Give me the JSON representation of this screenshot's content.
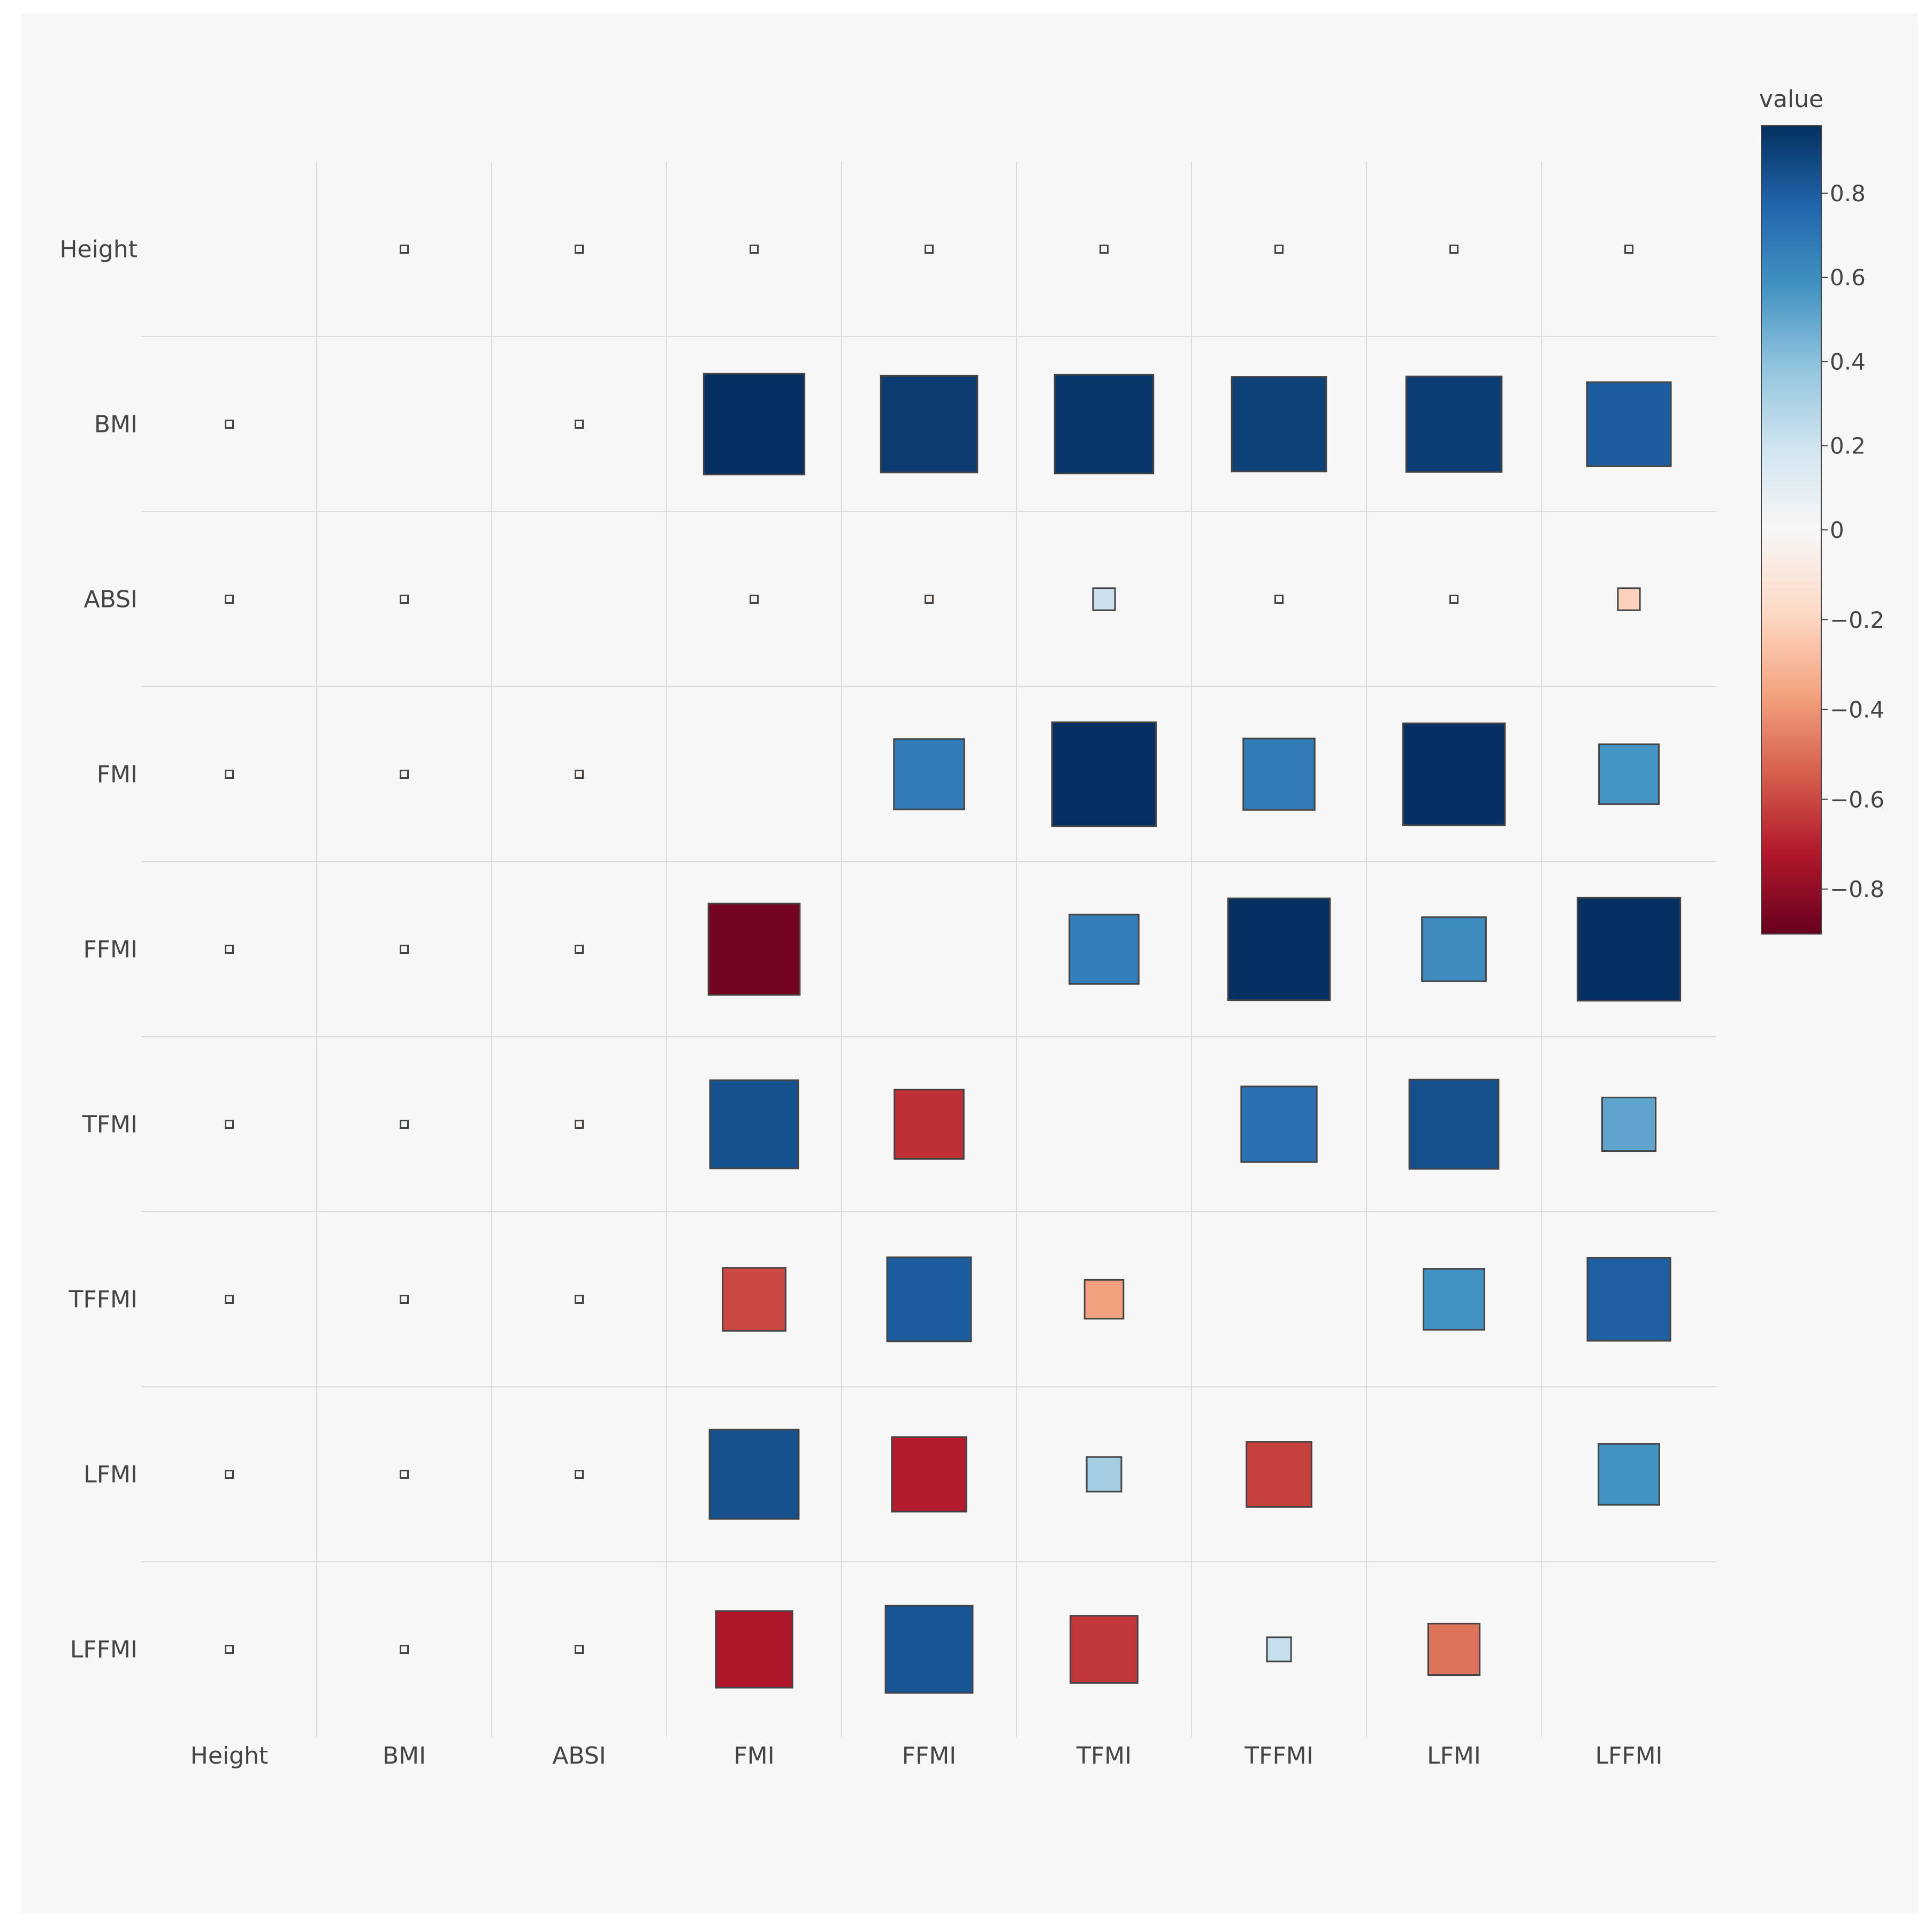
{
  "chart_data": {
    "type": "heatmap",
    "style": "correlation square glyphs (size and color encode value)",
    "variables": [
      "Height",
      "BMI",
      "ABSI",
      "FMI",
      "FFMI",
      "TFMI",
      "TFFMI",
      "LFMI",
      "LFFMI"
    ],
    "x_labels": [
      "Height",
      "BMI",
      "ABSI",
      "FMI",
      "FFMI",
      "TFMI",
      "TFFMI",
      "LFMI",
      "LFFMI"
    ],
    "y_labels": [
      "Height",
      "BMI",
      "ABSI",
      "FMI",
      "FFMI",
      "TFMI",
      "TFFMI",
      "LFMI",
      "LFFMI"
    ],
    "matrix": [
      [
        null,
        0.02,
        0.02,
        0.02,
        0.02,
        -0.04,
        0.02,
        0.02,
        0.05
      ],
      [
        0.02,
        null,
        0.02,
        0.96,
        0.92,
        0.94,
        0.9,
        0.91,
        0.8
      ],
      [
        0.02,
        0.02,
        null,
        0.06,
        -0.07,
        0.21,
        0.02,
        0.02,
        -0.21
      ],
      [
        0.02,
        0.02,
        -0.05,
        null,
        0.67,
        0.99,
        0.68,
        0.97,
        0.57
      ],
      [
        0.02,
        0.02,
        0.02,
        -0.87,
        null,
        0.66,
        0.97,
        0.61,
        0.98
      ],
      [
        0.02,
        0.05,
        -0.06,
        0.84,
        -0.66,
        null,
        0.72,
        0.85,
        0.51
      ],
      [
        0.02,
        0.02,
        0.02,
        -0.6,
        0.8,
        -0.37,
        null,
        0.58,
        0.79
      ],
      [
        0.02,
        0.02,
        0.04,
        0.85,
        -0.71,
        0.33,
        -0.62,
        null,
        0.58
      ],
      [
        0.02,
        0.02,
        0.02,
        -0.73,
        0.83,
        -0.64,
        0.23,
        -0.49,
        null
      ]
    ],
    "colorbar": {
      "title": "value",
      "range": [
        -0.9,
        0.96
      ],
      "ticks": [
        0.8,
        0.6,
        0.4,
        0.2,
        0,
        -0.2,
        -0.4,
        -0.6,
        -0.8
      ],
      "tick_labels": [
        "0.8",
        "0.6",
        "0.4",
        "0.2",
        "0",
        "−0.2",
        "−0.4",
        "−0.6",
        "−0.8"
      ],
      "colorscale": "RdBu",
      "colorscale_stops": [
        "#67001f",
        "#b2182b",
        "#d6604d",
        "#f4a582",
        "#fddbc7",
        "#f7f7f7",
        "#d1e5f0",
        "#92c5de",
        "#4393c3",
        "#2166ac",
        "#053061"
      ]
    },
    "grid": true,
    "legend": "right",
    "colors": {
      "background": "#f7f7f7",
      "grid_line": "#dcdcdc",
      "marker_outline": "#444444"
    }
  }
}
